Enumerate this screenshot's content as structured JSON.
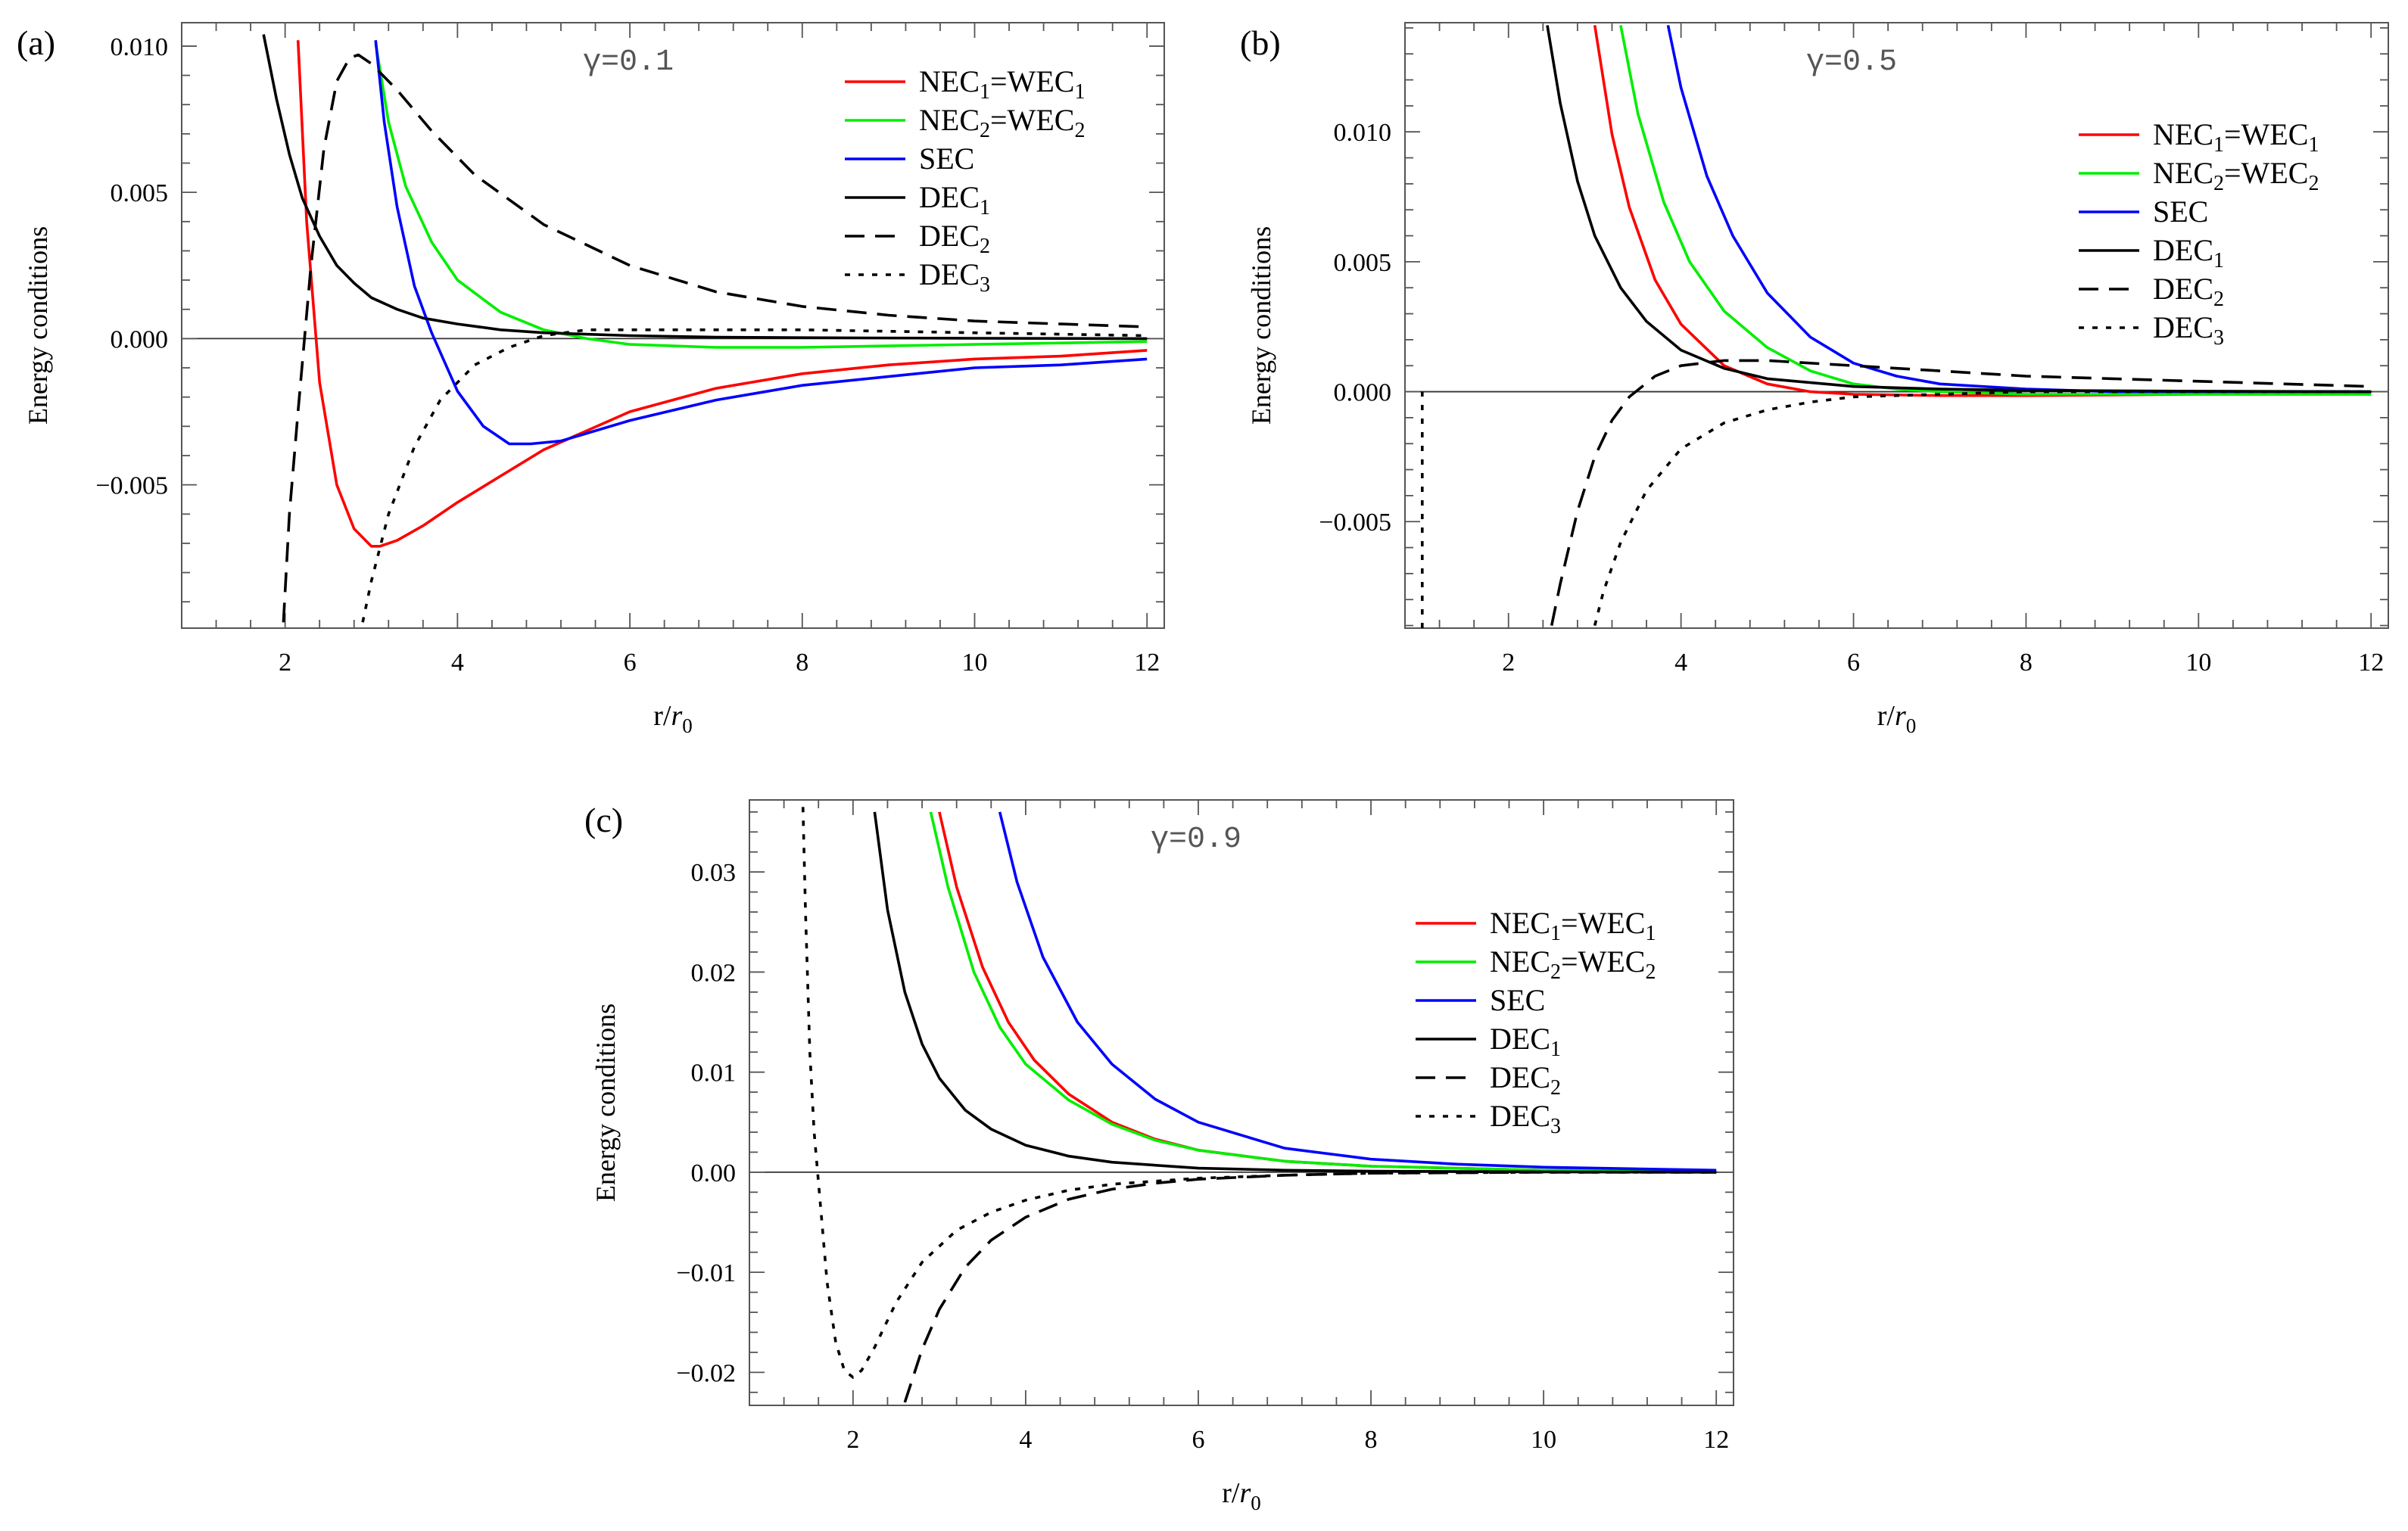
{
  "figure": {
    "xlabel_main": "r/",
    "xlabel_var": "r",
    "xlabel_sub": "0",
    "ylabel": "Energy conditions"
  },
  "legend": {
    "entries": [
      {
        "key": "nec1",
        "text": "NEC",
        "sub": "1",
        "text2": "=WEC",
        "sub2": "1",
        "color": "#ff0000",
        "dash": "solid"
      },
      {
        "key": "nec2",
        "text": "NEC",
        "sub": "2",
        "text2": "=WEC",
        "sub2": "2",
        "color": "#00ee00",
        "dash": "solid"
      },
      {
        "key": "sec",
        "text": "SEC",
        "sub": "",
        "text2": "",
        "sub2": "",
        "color": "#0000ff",
        "dash": "solid"
      },
      {
        "key": "dec1",
        "text": "DEC",
        "sub": "1",
        "text2": "",
        "sub2": "",
        "color": "#000000",
        "dash": "solid"
      },
      {
        "key": "dec2",
        "text": "DEC",
        "sub": "2",
        "text2": "",
        "sub2": "",
        "color": "#000000",
        "dash": "dashed"
      },
      {
        "key": "dec3",
        "text": "DEC",
        "sub": "3",
        "text2": "",
        "sub2": "",
        "color": "#000000",
        "dash": "dotted"
      }
    ]
  },
  "chart_data": [
    {
      "type": "line",
      "panel_label": "(a)",
      "annotation": "γ=0.1",
      "xlim": [
        0.8,
        12.2
      ],
      "ylim": [
        -0.0099,
        0.0108
      ],
      "xticks": [
        2,
        4,
        6,
        8,
        10,
        12
      ],
      "yticks": [
        -0.005,
        0.0,
        0.005,
        0.01
      ],
      "ytick_labels": [
        "−0.005",
        "0.000",
        "0.005",
        "0.010"
      ],
      "series": [
        {
          "name": "NEC1=WEC1",
          "x": [
            2.15,
            2.25,
            2.4,
            2.6,
            2.8,
            3.0,
            3.1,
            3.3,
            3.6,
            4.0,
            4.5,
            5.0,
            6.0,
            7.0,
            8.0,
            9.0,
            10.0,
            11.0,
            12.0
          ],
          "y": [
            0.0102,
            0.004,
            -0.0015,
            -0.005,
            -0.0065,
            -0.0071,
            -0.0071,
            -0.0069,
            -0.0064,
            -0.0056,
            -0.0047,
            -0.0038,
            -0.0025,
            -0.0017,
            -0.0012,
            -0.0009,
            -0.0007,
            -0.0006,
            -0.0004
          ]
        },
        {
          "name": "NEC2=WEC2",
          "x": [
            3.05,
            3.2,
            3.4,
            3.7,
            4.0,
            4.5,
            5.0,
            5.5,
            6.0,
            7.0,
            8.0,
            10.0,
            12.0
          ],
          "y": [
            0.0101,
            0.0074,
            0.0052,
            0.0033,
            0.002,
            0.0009,
            0.0003,
            0.0,
            -0.0002,
            -0.0003,
            -0.0003,
            -0.0002,
            -0.0001
          ]
        },
        {
          "name": "SEC",
          "x": [
            3.05,
            3.15,
            3.3,
            3.5,
            3.7,
            4.0,
            4.3,
            4.6,
            4.85,
            5.2,
            6.0,
            7.0,
            8.0,
            9.0,
            10.0,
            11.0,
            12.0
          ],
          "y": [
            0.0102,
            0.0074,
            0.0045,
            0.0018,
            0.0002,
            -0.0018,
            -0.003,
            -0.0036,
            -0.0036,
            -0.0035,
            -0.0028,
            -0.0021,
            -0.0016,
            -0.0013,
            -0.001,
            -0.0009,
            -0.0007
          ]
        },
        {
          "name": "DEC1",
          "x": [
            1.75,
            1.9,
            2.05,
            2.2,
            2.4,
            2.6,
            2.8,
            3.0,
            3.3,
            3.6,
            4.0,
            4.5,
            5.0,
            6.0,
            7.0,
            8.0,
            10.0,
            12.0
          ],
          "y": [
            0.0104,
            0.0082,
            0.0063,
            0.0048,
            0.0035,
            0.0025,
            0.0019,
            0.0014,
            0.001,
            0.0007,
            0.0005,
            0.0003,
            0.0002,
            0.0001,
            5e-05,
            3e-05,
            1e-05,
            0.0
          ]
        },
        {
          "name": "DEC2",
          "x": [
            1.98,
            2.05,
            2.15,
            2.3,
            2.45,
            2.6,
            2.75,
            2.85,
            3.0,
            3.3,
            3.7,
            4.2,
            5.0,
            6.0,
            7.0,
            8.0,
            9.0,
            10.0,
            11.0,
            12.0
          ],
          "y": [
            -0.0097,
            -0.006,
            -0.0025,
            0.0025,
            0.0065,
            0.0088,
            0.0096,
            0.0097,
            0.0094,
            0.0085,
            0.0071,
            0.0056,
            0.0039,
            0.0025,
            0.0016,
            0.0011,
            0.0008,
            0.0006,
            0.0005,
            0.0004
          ]
        },
        {
          "name": "DEC3",
          "x": [
            2.9,
            3.0,
            3.2,
            3.5,
            3.8,
            4.2,
            4.6,
            5.0,
            5.5,
            6.0,
            7.0,
            8.0,
            10.0,
            12.0
          ],
          "y": [
            -0.0097,
            -0.0083,
            -0.006,
            -0.0037,
            -0.0021,
            -0.0009,
            -0.0003,
            0.0001,
            0.0003,
            0.0003,
            0.0003,
            0.0003,
            0.0002,
            0.0001
          ]
        }
      ]
    },
    {
      "type": "line",
      "panel_label": "(b)",
      "annotation": "γ=0.5",
      "xlim": [
        0.8,
        12.2
      ],
      "ylim": [
        -0.0091,
        0.0142
      ],
      "xticks": [
        2,
        4,
        6,
        8,
        10,
        12
      ],
      "yticks": [
        -0.005,
        0.0,
        0.005,
        0.01
      ],
      "ytick_labels": [
        "−0.005",
        "0.000",
        "0.005",
        "0.010"
      ],
      "series": [
        {
          "name": "NEC1=WEC1",
          "x": [
            3.0,
            3.2,
            3.4,
            3.7,
            4.0,
            4.5,
            5.0,
            5.5,
            6.0,
            7.0,
            8.0,
            10.0,
            12.0
          ],
          "y": [
            0.0141,
            0.0099,
            0.0071,
            0.0043,
            0.0026,
            0.001,
            0.0003,
            0.0,
            -0.0001,
            -0.00015,
            -0.00015,
            -0.0001,
            -0.0001
          ]
        },
        {
          "name": "NEC2=WEC2",
          "x": [
            3.3,
            3.5,
            3.8,
            4.1,
            4.5,
            5.0,
            5.5,
            6.0,
            6.5,
            7.0,
            8.0,
            10.0,
            12.0
          ],
          "y": [
            0.0141,
            0.0107,
            0.0073,
            0.005,
            0.0031,
            0.0017,
            0.0008,
            0.0003,
            0.0001,
            0.0,
            -0.0001,
            -0.0001,
            -0.0001
          ]
        },
        {
          "name": "SEC",
          "x": [
            3.85,
            4.0,
            4.3,
            4.6,
            5.0,
            5.5,
            6.0,
            6.5,
            7.0,
            8.0,
            9.0,
            10.0,
            12.0
          ],
          "y": [
            0.0141,
            0.0117,
            0.0083,
            0.006,
            0.0038,
            0.0021,
            0.0011,
            0.0006,
            0.0003,
            0.0001,
            0.0,
            0.0,
            0.0
          ]
        },
        {
          "name": "DEC1",
          "x": [
            2.45,
            2.6,
            2.8,
            3.0,
            3.3,
            3.6,
            4.0,
            4.5,
            5.0,
            6.0,
            7.0,
            8.0,
            10.0,
            12.0
          ],
          "y": [
            0.0141,
            0.0111,
            0.0081,
            0.006,
            0.004,
            0.0027,
            0.0016,
            0.0009,
            0.0005,
            0.0002,
            0.0001,
            5e-05,
            2e-05,
            0.0
          ]
        },
        {
          "name": "DEC2",
          "x": [
            2.5,
            2.6,
            2.8,
            3.0,
            3.2,
            3.4,
            3.7,
            4.0,
            4.5,
            5.0,
            6.0,
            7.0,
            8.0,
            9.0,
            10.0,
            11.0,
            12.0
          ],
          "y": [
            -0.009,
            -0.0074,
            -0.0046,
            -0.0025,
            -0.0011,
            -0.0002,
            0.0006,
            0.001,
            0.0012,
            0.0012,
            0.001,
            0.0008,
            0.0006,
            0.0005,
            0.0004,
            0.0003,
            0.0002
          ]
        },
        {
          "name": "DEC3",
          "x": [
            3.0,
            3.1,
            3.3,
            3.6,
            4.0,
            4.5,
            5.0,
            5.5,
            6.0,
            7.0,
            8.0,
            10.0,
            12.0
          ],
          "y": [
            -0.009,
            -0.0077,
            -0.0058,
            -0.0038,
            -0.0022,
            -0.0012,
            -0.0007,
            -0.0004,
            -0.0002,
            -0.0001,
            0.0,
            0.0,
            0.0
          ]
        },
        {
          "name": "DEC3 (near wall)",
          "x": [
            1.0,
            1.0
          ],
          "y": [
            -0.0091,
            0.0
          ]
        }
      ]
    },
    {
      "type": "line",
      "panel_label": "(c)",
      "annotation": "γ=0.9",
      "xlim": [
        0.8,
        12.2
      ],
      "ylim": [
        -0.0233,
        0.0372
      ],
      "xticks": [
        2,
        4,
        6,
        8,
        10,
        12
      ],
      "yticks": [
        -0.02,
        -0.01,
        0.0,
        0.01,
        0.02,
        0.03
      ],
      "ytick_labels": [
        "−0.02",
        "−0.01",
        "0.00",
        "0.01",
        "0.02",
        "0.03"
      ],
      "series": [
        {
          "name": "NEC1=WEC1",
          "x": [
            3.0,
            3.2,
            3.5,
            3.8,
            4.1,
            4.5,
            5.0,
            5.5,
            6.0,
            7.0,
            8.0,
            10.0,
            12.0
          ],
          "y": [
            0.036,
            0.0285,
            0.0205,
            0.015,
            0.0112,
            0.0078,
            0.005,
            0.0033,
            0.0022,
            0.0011,
            0.0006,
            0.0002,
            0.0001
          ]
        },
        {
          "name": "NEC2=WEC2",
          "x": [
            2.9,
            3.1,
            3.4,
            3.7,
            4.0,
            4.5,
            5.0,
            5.5,
            6.0,
            7.0,
            8.0,
            10.0,
            12.0
          ],
          "y": [
            0.036,
            0.0285,
            0.02,
            0.0145,
            0.0108,
            0.0072,
            0.0048,
            0.0032,
            0.0022,
            0.0011,
            0.0006,
            0.0002,
            0.0001
          ]
        },
        {
          "name": "SEC",
          "x": [
            3.7,
            3.9,
            4.2,
            4.6,
            5.0,
            5.5,
            6.0,
            7.0,
            8.0,
            9.0,
            10.0,
            12.0
          ],
          "y": [
            0.036,
            0.029,
            0.0215,
            0.015,
            0.0108,
            0.0073,
            0.005,
            0.0024,
            0.0013,
            0.0008,
            0.0005,
            0.0002
          ]
        },
        {
          "name": "DEC1",
          "x": [
            2.25,
            2.4,
            2.6,
            2.8,
            3.0,
            3.3,
            3.6,
            4.0,
            4.5,
            5.0,
            6.0,
            7.0,
            8.0,
            10.0,
            12.0
          ],
          "y": [
            0.036,
            0.0262,
            0.018,
            0.0128,
            0.0094,
            0.0062,
            0.0043,
            0.0027,
            0.0016,
            0.001,
            0.0004,
            0.0002,
            0.0001,
            3e-05,
            0.0
          ]
        },
        {
          "name": "DEC2",
          "x": [
            2.6,
            2.8,
            3.0,
            3.3,
            3.6,
            4.0,
            4.5,
            5.0,
            5.5,
            6.0,
            7.0,
            8.0,
            10.0,
            12.0
          ],
          "y": [
            -0.023,
            -0.0177,
            -0.0137,
            -0.0095,
            -0.0068,
            -0.0045,
            -0.0027,
            -0.0017,
            -0.0011,
            -0.0007,
            -0.0003,
            -0.0001,
            0.0,
            0.0
          ]
        },
        {
          "name": "DEC3",
          "x": [
            1.42,
            1.45,
            1.5,
            1.55,
            1.6,
            1.65,
            1.7,
            1.8,
            1.9,
            2.0,
            2.1,
            2.25,
            2.5,
            2.8,
            3.2,
            3.6,
            4.0,
            4.5,
            5.0,
            6.0,
            7.0,
            8.0,
            10.0,
            12.0
          ],
          "y": [
            0.0365,
            0.026,
            0.012,
            0.004,
            -0.001,
            -0.006,
            -0.011,
            -0.017,
            -0.0198,
            -0.0205,
            -0.0198,
            -0.0175,
            -0.013,
            -0.009,
            -0.0058,
            -0.004,
            -0.0028,
            -0.0018,
            -0.0012,
            -0.0006,
            -0.0003,
            -0.0001,
            0.0,
            0.0
          ]
        }
      ]
    }
  ]
}
